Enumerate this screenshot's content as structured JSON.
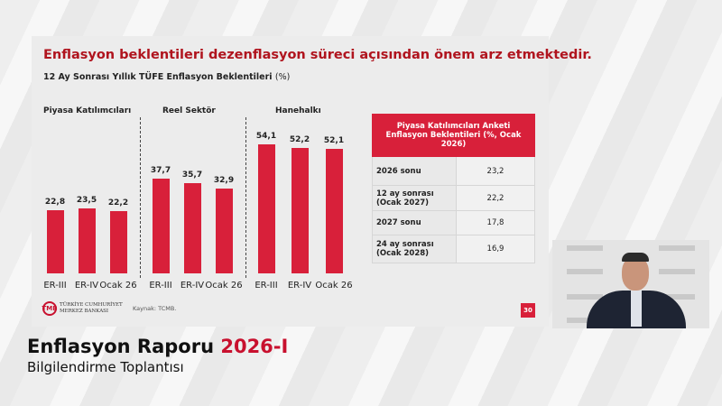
{
  "slide": {
    "title": "Enflasyon beklentileri dezenflasyon süreci açısından önem arz etmektedir.",
    "subtitle": "12 Ay Sonrası Yıllık TÜFE Enflasyon Beklentileri",
    "subtitle_unit": "(%)",
    "source": "Kaynak: TCMB.",
    "page_number": "30",
    "logo_text_1": "TÜRKİYE CUMHURİYET",
    "logo_text_2": "MERKEZ BANKASI"
  },
  "chart_data": {
    "type": "bar",
    "title": "12 Ay Sonrası Yıllık TÜFE Enflasyon Beklentileri (%)",
    "categories": [
      "ER-III",
      "ER-IV",
      "Ocak 26"
    ],
    "groups": [
      {
        "name": "Piyasa Katılımcıları",
        "labels": [
          "22,8",
          "23,5",
          "22,2"
        ],
        "values": [
          22.8,
          23.5,
          22.2
        ]
      },
      {
        "name": "Reel Sektör",
        "labels": [
          "37,7",
          "35,7",
          "32,9"
        ],
        "values": [
          37.7,
          35.7,
          32.9
        ]
      },
      {
        "name": "Hanehalkı",
        "labels": [
          "54,1",
          "52,2",
          "52,1"
        ],
        "values": [
          54.1,
          52.2,
          52.1
        ]
      }
    ],
    "bar_color": "#d8203a"
  },
  "table": {
    "header": "Piyasa Katılımcıları Anketi Enflasyon Beklentileri (%, Ocak 2026)",
    "rows": [
      {
        "label": "2026 sonu",
        "value": "23,2"
      },
      {
        "label": "12 ay sonrası (Ocak 2027)",
        "value": "22,2"
      },
      {
        "label": "2027 sonu",
        "value": "17,8"
      },
      {
        "label": "24 ay sonrası (Ocak 2028)",
        "value": "16,9"
      }
    ]
  },
  "banner": {
    "title": "Enflasyon Raporu",
    "highlight": "2026-I",
    "subtitle": "Bilgilendirme Toplantısı"
  }
}
